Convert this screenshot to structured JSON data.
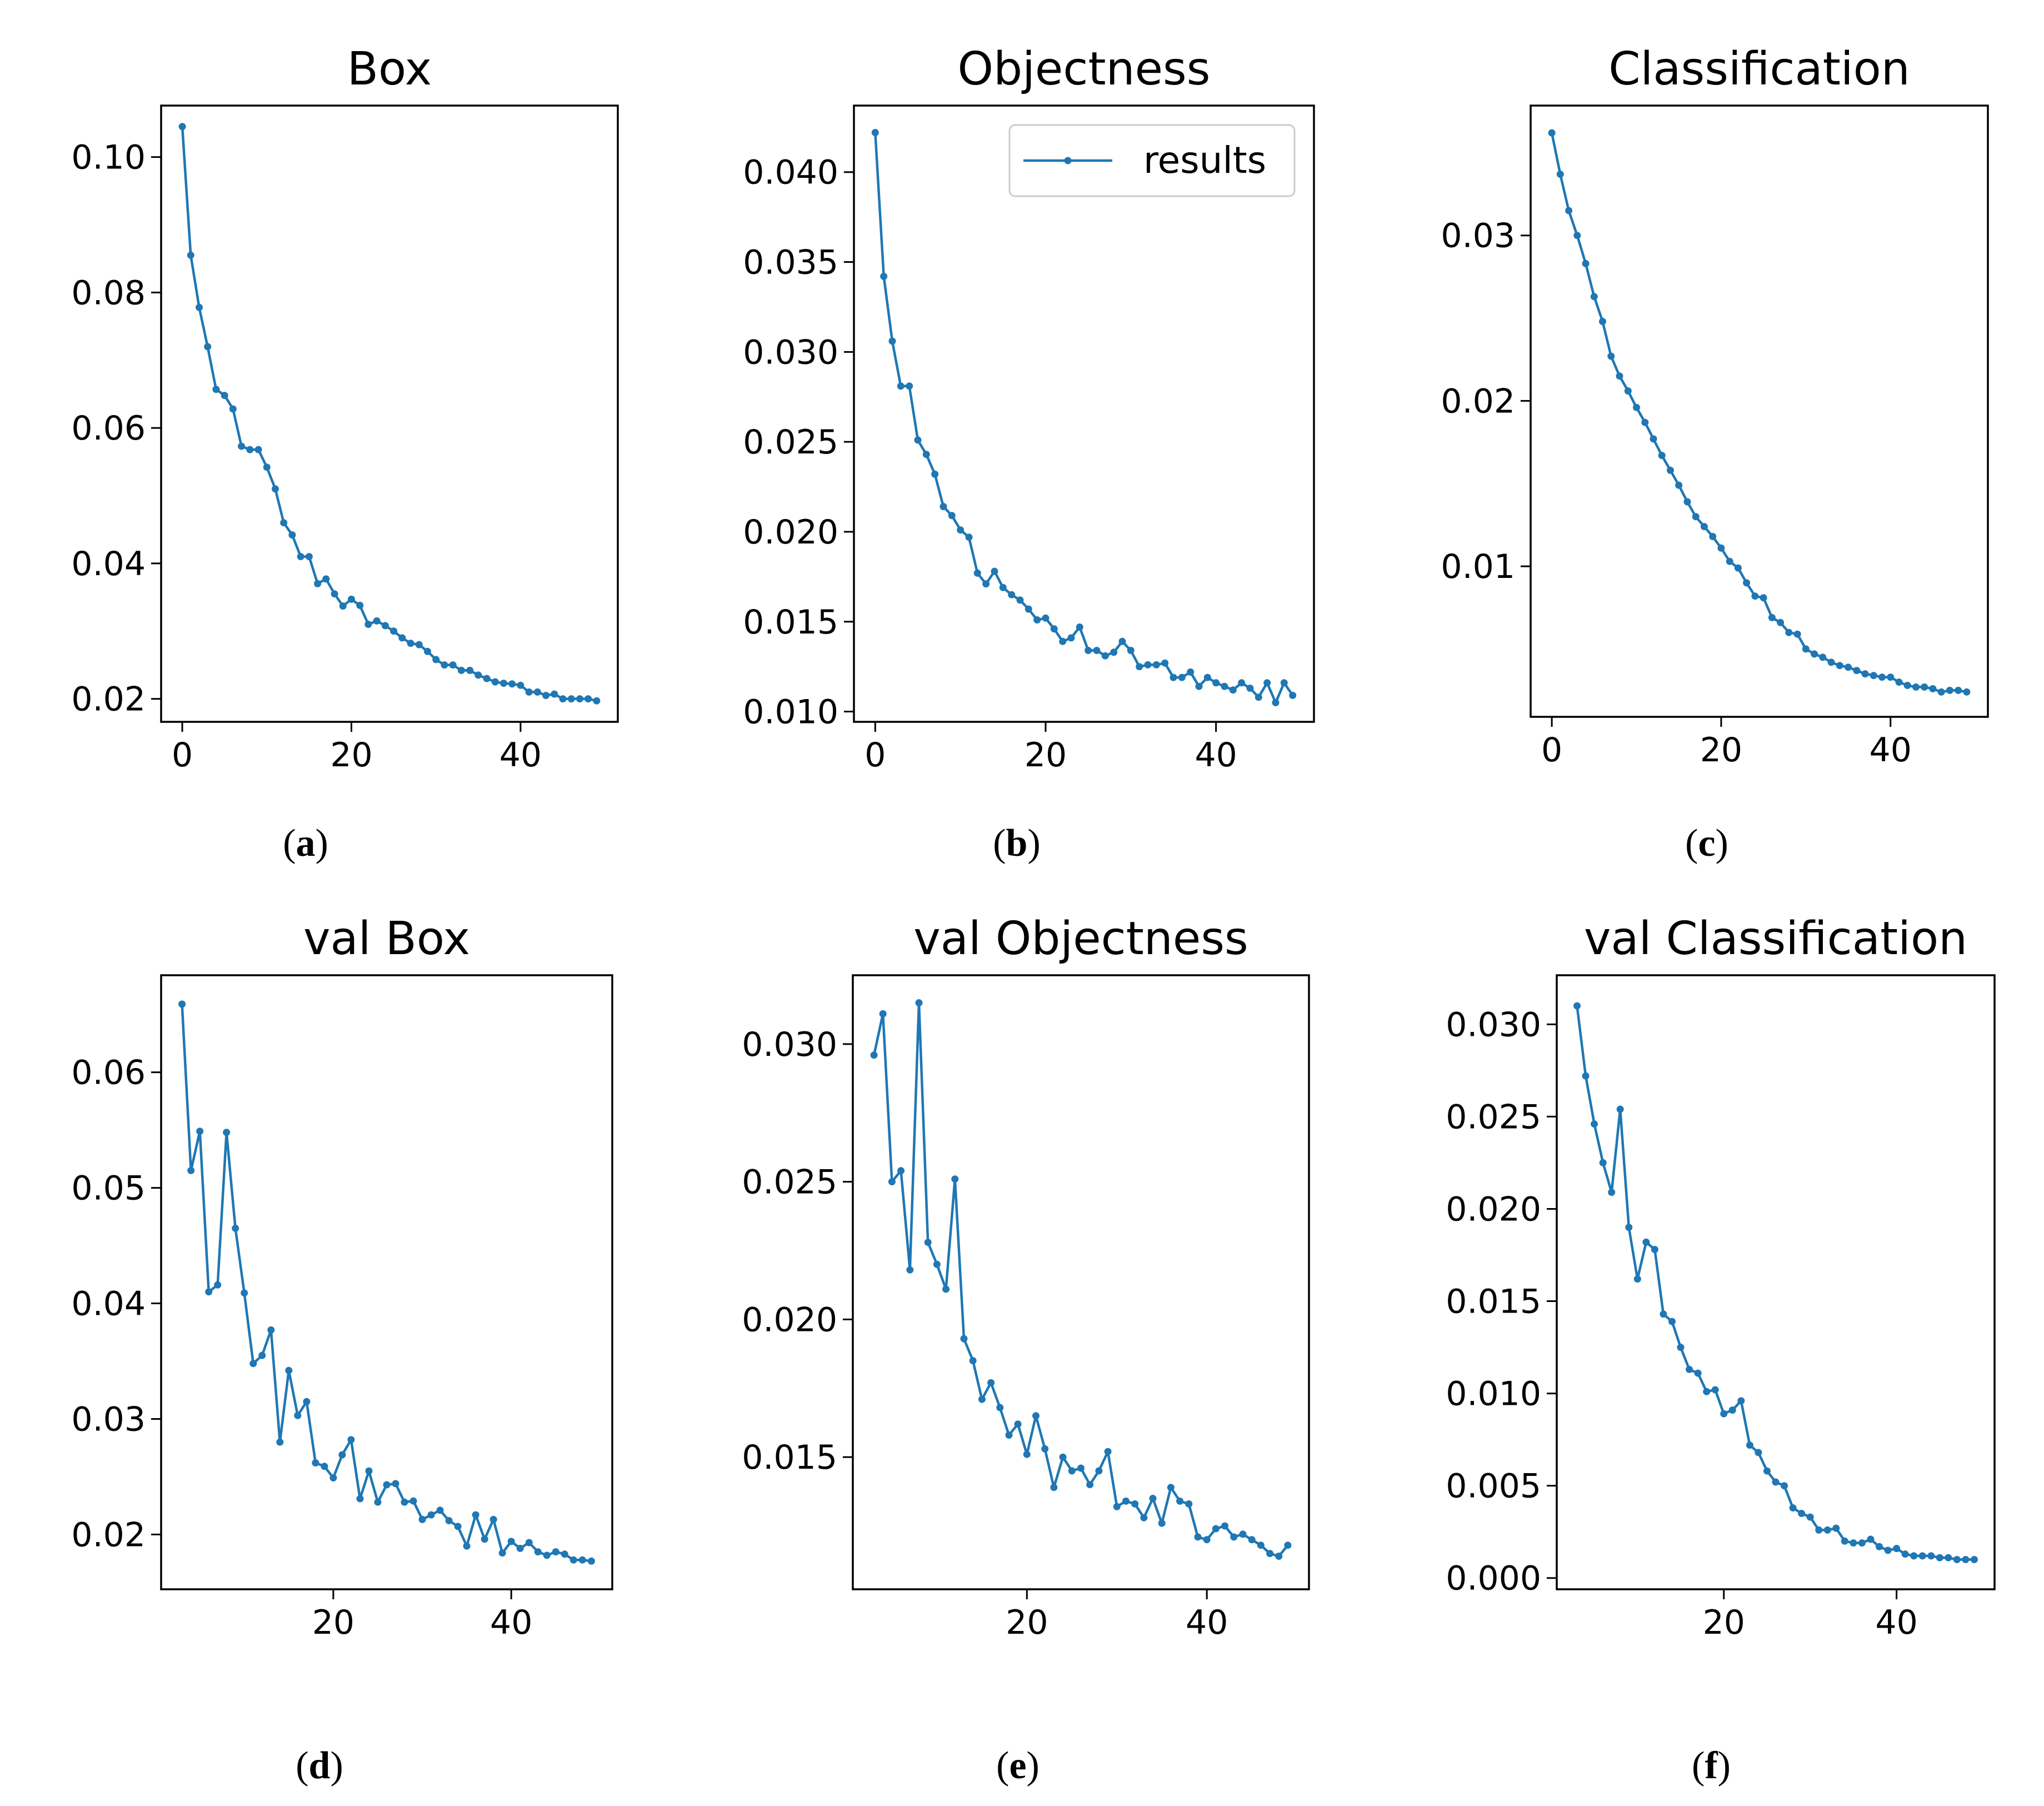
{
  "chart_data": [
    {
      "id": "a",
      "type": "line",
      "title": "Box",
      "caption": {
        "open": "(",
        "letter": "a",
        "close": ")"
      },
      "xlabel": "",
      "ylabel": "",
      "xlim": [
        -2.5,
        51.5
      ],
      "ylim": [
        0.0166,
        0.1076
      ],
      "xticks": [
        0,
        20,
        40
      ],
      "xtick_labels": [
        "0",
        "20",
        "40"
      ],
      "yticks": [
        0.02,
        0.04,
        0.06,
        0.08,
        0.1
      ],
      "ytick_labels": [
        "0.02",
        "0.04",
        "0.06",
        "0.08",
        "0.10"
      ],
      "series": [
        {
          "name": "results",
          "color": "#1f77b4",
          "x": [
            0,
            1,
            2,
            3,
            4,
            5,
            6,
            7,
            8,
            9,
            10,
            11,
            12,
            13,
            14,
            15,
            16,
            17,
            18,
            19,
            20,
            21,
            22,
            23,
            24,
            25,
            26,
            27,
            28,
            29,
            30,
            31,
            32,
            33,
            34,
            35,
            36,
            37,
            38,
            39,
            40,
            41,
            42,
            43,
            44,
            45,
            46,
            47,
            48,
            49
          ],
          "values": [
            0.1045,
            0.0855,
            0.0778,
            0.072,
            0.0657,
            0.0648,
            0.0628,
            0.0573,
            0.0568,
            0.0568,
            0.0542,
            0.051,
            0.046,
            0.0442,
            0.041,
            0.041,
            0.037,
            0.0377,
            0.0355,
            0.0337,
            0.0347,
            0.0338,
            0.031,
            0.0315,
            0.0308,
            0.03,
            0.029,
            0.0282,
            0.028,
            0.027,
            0.0258,
            0.025,
            0.025,
            0.0242,
            0.0242,
            0.0235,
            0.023,
            0.0225,
            0.0223,
            0.0222,
            0.022,
            0.021,
            0.021,
            0.0205,
            0.0207,
            0.02,
            0.02,
            0.02,
            0.02,
            0.0197
          ]
        }
      ],
      "legend": null
    },
    {
      "id": "b",
      "type": "line",
      "title": "Objectness",
      "caption": {
        "open": "(",
        "letter": "b",
        "close": ")"
      },
      "xlabel": "",
      "ylabel": "",
      "xlim": [
        -2.5,
        51.5
      ],
      "ylim": [
        0.00943,
        0.0437
      ],
      "xticks": [
        0,
        20,
        40
      ],
      "xtick_labels": [
        "0",
        "20",
        "40"
      ],
      "yticks": [
        0.01,
        0.015,
        0.02,
        0.025,
        0.03,
        0.035,
        0.04
      ],
      "ytick_labels": [
        "0.010",
        "0.015",
        "0.020",
        "0.025",
        "0.030",
        "0.035",
        "0.040"
      ],
      "series": [
        {
          "name": "results",
          "color": "#1f77b4",
          "x": [
            0,
            1,
            2,
            3,
            4,
            5,
            6,
            7,
            8,
            9,
            10,
            11,
            12,
            13,
            14,
            15,
            16,
            17,
            18,
            19,
            20,
            21,
            22,
            23,
            24,
            25,
            26,
            27,
            28,
            29,
            30,
            31,
            32,
            33,
            34,
            35,
            36,
            37,
            38,
            39,
            40,
            41,
            42,
            43,
            44,
            45,
            46,
            47,
            48,
            49
          ],
          "values": [
            0.0422,
            0.0342,
            0.0306,
            0.0281,
            0.0281,
            0.0251,
            0.0243,
            0.0232,
            0.0214,
            0.0209,
            0.0201,
            0.0197,
            0.0177,
            0.0171,
            0.0178,
            0.0169,
            0.0165,
            0.0162,
            0.0157,
            0.0151,
            0.0152,
            0.0146,
            0.0139,
            0.0141,
            0.0147,
            0.0134,
            0.0134,
            0.0131,
            0.0133,
            0.0139,
            0.0134,
            0.0125,
            0.0126,
            0.0126,
            0.0127,
            0.0119,
            0.0119,
            0.0122,
            0.0114,
            0.0119,
            0.0116,
            0.0114,
            0.0112,
            0.0116,
            0.0113,
            0.0108,
            0.0116,
            0.0105,
            0.0116,
            0.0109
          ]
        }
      ],
      "legend": {
        "label": "results",
        "position": "upper right"
      }
    },
    {
      "id": "c",
      "type": "line",
      "title": "Classification",
      "caption": {
        "open": "(",
        "letter": "c",
        "close": ")"
      },
      "xlabel": "",
      "ylabel": "",
      "xlim": [
        -2.5,
        51.5
      ],
      "ylim": [
        0.0009,
        0.03785
      ],
      "xticks": [
        0,
        20,
        40
      ],
      "xtick_labels": [
        "0",
        "20",
        "40"
      ],
      "yticks": [
        0.01,
        0.02,
        0.03
      ],
      "ytick_labels": [
        "0.01",
        "0.02",
        "0.03"
      ],
      "series": [
        {
          "name": "results",
          "color": "#1f77b4",
          "x": [
            0,
            1,
            2,
            3,
            4,
            5,
            6,
            7,
            8,
            9,
            10,
            11,
            12,
            13,
            14,
            15,
            16,
            17,
            18,
            19,
            20,
            21,
            22,
            23,
            24,
            25,
            26,
            27,
            28,
            29,
            30,
            31,
            32,
            33,
            34,
            35,
            36,
            37,
            38,
            39,
            40,
            41,
            42,
            43,
            44,
            45,
            46,
            47,
            48,
            49
          ],
          "values": [
            0.0362,
            0.0337,
            0.0315,
            0.03,
            0.0283,
            0.0263,
            0.0248,
            0.0227,
            0.0215,
            0.0206,
            0.0196,
            0.0187,
            0.0177,
            0.0167,
            0.0158,
            0.0149,
            0.0139,
            0.013,
            0.0124,
            0.0118,
            0.0111,
            0.0103,
            0.0099,
            0.009,
            0.0082,
            0.0081,
            0.0069,
            0.0066,
            0.006,
            0.0059,
            0.005,
            0.0047,
            0.0045,
            0.0042,
            0.004,
            0.0039,
            0.0037,
            0.0035,
            0.0034,
            0.0033,
            0.0033,
            0.003,
            0.0028,
            0.0027,
            0.0027,
            0.0026,
            0.0024,
            0.0025,
            0.0025,
            0.0024
          ]
        }
      ],
      "legend": null
    },
    {
      "id": "d",
      "type": "line",
      "title": "val Box",
      "caption": {
        "open": "(",
        "letter": "d",
        "close": ")"
      },
      "xlabel": "",
      "ylabel": "",
      "xlim": [
        0.65,
        51.35
      ],
      "ylim": [
        0.01526,
        0.0684
      ],
      "xticks": [
        20,
        40
      ],
      "xtick_labels": [
        "20",
        "40"
      ],
      "yticks": [
        0.02,
        0.03,
        0.04,
        0.05,
        0.06
      ],
      "ytick_labels": [
        "0.02",
        "0.03",
        "0.04",
        "0.05",
        "0.06"
      ],
      "series": [
        {
          "name": "results",
          "color": "#1f77b4",
          "x": [
            3,
            4,
            5,
            6,
            7,
            8,
            9,
            10,
            11,
            12,
            13,
            14,
            15,
            16,
            17,
            18,
            19,
            20,
            21,
            22,
            23,
            24,
            25,
            26,
            27,
            28,
            29,
            30,
            31,
            32,
            33,
            34,
            35,
            36,
            37,
            38,
            39,
            40,
            41,
            42,
            43,
            44,
            45,
            46,
            47,
            48,
            49
          ],
          "values": [
            0.0659,
            0.0515,
            0.0549,
            0.041,
            0.0416,
            0.0548,
            0.0465,
            0.0409,
            0.0348,
            0.0355,
            0.0377,
            0.028,
            0.0342,
            0.0303,
            0.0315,
            0.0262,
            0.0259,
            0.0249,
            0.0269,
            0.0282,
            0.0231,
            0.0255,
            0.0228,
            0.0243,
            0.0244,
            0.0228,
            0.0229,
            0.0213,
            0.0217,
            0.0221,
            0.0212,
            0.0207,
            0.019,
            0.0217,
            0.0196,
            0.0213,
            0.0184,
            0.0194,
            0.0188,
            0.0193,
            0.0185,
            0.0182,
            0.0185,
            0.0183,
            0.0178,
            0.0178,
            0.0177
          ]
        }
      ],
      "legend": null
    },
    {
      "id": "e",
      "type": "line",
      "title": "val Objectness",
      "caption": {
        "open": "(",
        "letter": "e",
        "close": ")"
      },
      "xlabel": "",
      "ylabel": "",
      "xlim": [
        0.65,
        51.35
      ],
      "ylim": [
        0.0102,
        0.0325
      ],
      "xticks": [
        20,
        40
      ],
      "xtick_labels": [
        "20",
        "40"
      ],
      "yticks": [
        0.015,
        0.02,
        0.025,
        0.03
      ],
      "ytick_labels": [
        "0.015",
        "0.020",
        "0.025",
        "0.030"
      ],
      "series": [
        {
          "name": "results",
          "color": "#1f77b4",
          "x": [
            3,
            4,
            5,
            6,
            7,
            8,
            9,
            10,
            11,
            12,
            13,
            14,
            15,
            16,
            17,
            18,
            19,
            20,
            21,
            22,
            23,
            24,
            25,
            26,
            27,
            28,
            29,
            30,
            31,
            32,
            33,
            34,
            35,
            36,
            37,
            38,
            39,
            40,
            41,
            42,
            43,
            44,
            45,
            46,
            47,
            48,
            49
          ],
          "values": [
            0.0296,
            0.0311,
            0.025,
            0.0254,
            0.0218,
            0.0315,
            0.0228,
            0.022,
            0.0211,
            0.0251,
            0.0193,
            0.0185,
            0.0171,
            0.0177,
            0.0168,
            0.0158,
            0.0162,
            0.0151,
            0.0165,
            0.0153,
            0.0139,
            0.015,
            0.0145,
            0.0146,
            0.014,
            0.0145,
            0.0152,
            0.0132,
            0.0134,
            0.0133,
            0.0128,
            0.0135,
            0.0126,
            0.0139,
            0.0134,
            0.0133,
            0.0121,
            0.012,
            0.0124,
            0.0125,
            0.0121,
            0.0122,
            0.012,
            0.0118,
            0.0115,
            0.0114,
            0.0118
          ]
        }
      ],
      "legend": null
    },
    {
      "id": "f",
      "type": "line",
      "title": "val Classification",
      "caption": {
        "open": "(",
        "letter": "f",
        "close": ")"
      },
      "xlabel": "",
      "ylabel": "",
      "xlim": [
        0.65,
        51.35
      ],
      "ylim": [
        -0.00061,
        0.03266
      ],
      "xticks": [
        20,
        40
      ],
      "xtick_labels": [
        "20",
        "40"
      ],
      "yticks": [
        0.0,
        0.005,
        0.01,
        0.015,
        0.02,
        0.025,
        0.03
      ],
      "ytick_labels": [
        "0.000",
        "0.005",
        "0.010",
        "0.015",
        "0.020",
        "0.025",
        "0.030"
      ],
      "series": [
        {
          "name": "results",
          "color": "#1f77b4",
          "x": [
            3,
            4,
            5,
            6,
            7,
            8,
            9,
            10,
            11,
            12,
            13,
            14,
            15,
            16,
            17,
            18,
            19,
            20,
            21,
            22,
            23,
            24,
            25,
            26,
            27,
            28,
            29,
            30,
            31,
            32,
            33,
            34,
            35,
            36,
            37,
            38,
            39,
            40,
            41,
            42,
            43,
            44,
            45,
            46,
            47,
            48,
            49
          ],
          "values": [
            0.031,
            0.0272,
            0.0246,
            0.0225,
            0.0209,
            0.0254,
            0.019,
            0.0162,
            0.0182,
            0.0178,
            0.0143,
            0.0139,
            0.0125,
            0.0113,
            0.0111,
            0.0101,
            0.0102,
            0.0089,
            0.0091,
            0.0096,
            0.0072,
            0.0068,
            0.0058,
            0.0052,
            0.005,
            0.0038,
            0.0035,
            0.0033,
            0.0026,
            0.0026,
            0.0027,
            0.002,
            0.0019,
            0.0019,
            0.0021,
            0.0017,
            0.0015,
            0.0016,
            0.0013,
            0.0012,
            0.0012,
            0.0012,
            0.0011,
            0.0011,
            0.001,
            0.001,
            0.001
          ]
        }
      ],
      "legend": null
    }
  ]
}
